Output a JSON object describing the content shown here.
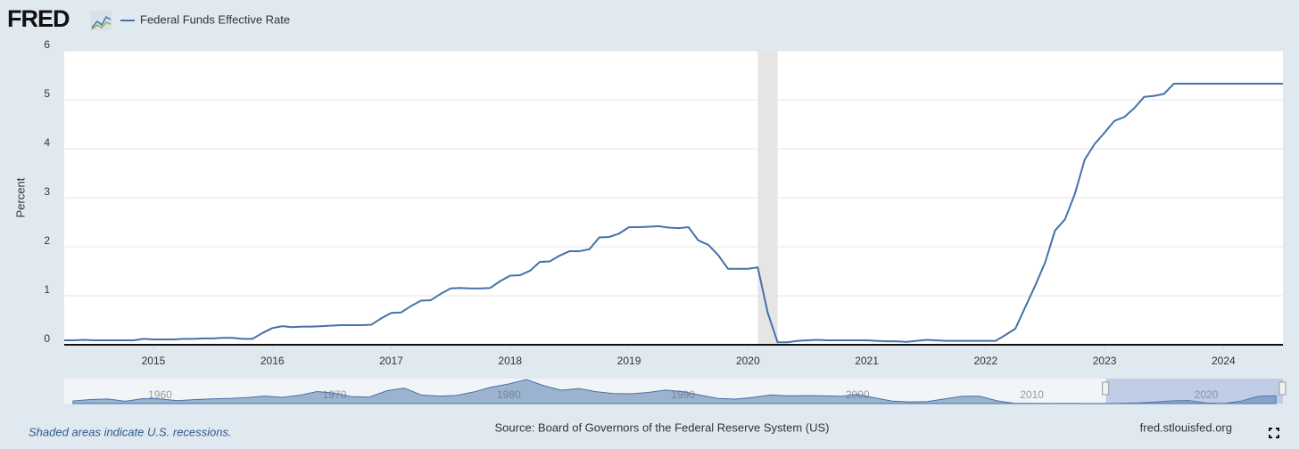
{
  "logo": "FRED",
  "chart_data": [
    {
      "type": "line",
      "ylabel": "Percent",
      "x": [
        2014.25,
        2014.333,
        2014.417,
        2014.5,
        2014.583,
        2014.667,
        2014.75,
        2014.833,
        2014.917,
        2015.0,
        2015.083,
        2015.167,
        2015.25,
        2015.333,
        2015.417,
        2015.5,
        2015.583,
        2015.667,
        2015.75,
        2015.833,
        2015.917,
        2016.0,
        2016.083,
        2016.167,
        2016.25,
        2016.333,
        2016.417,
        2016.5,
        2016.583,
        2016.667,
        2016.75,
        2016.833,
        2016.917,
        2017.0,
        2017.083,
        2017.167,
        2017.25,
        2017.333,
        2017.417,
        2017.5,
        2017.583,
        2017.667,
        2017.75,
        2017.833,
        2017.917,
        2018.0,
        2018.083,
        2018.167,
        2018.25,
        2018.333,
        2018.417,
        2018.5,
        2018.583,
        2018.667,
        2018.75,
        2018.833,
        2018.917,
        2019.0,
        2019.083,
        2019.167,
        2019.25,
        2019.333,
        2019.417,
        2019.5,
        2019.583,
        2019.667,
        2019.75,
        2019.833,
        2019.917,
        2020.0,
        2020.083,
        2020.167,
        2020.25,
        2020.333,
        2020.417,
        2020.5,
        2020.583,
        2020.667,
        2020.75,
        2020.833,
        2020.917,
        2021.0,
        2021.083,
        2021.167,
        2021.25,
        2021.333,
        2021.417,
        2021.5,
        2021.583,
        2021.667,
        2021.75,
        2021.833,
        2021.917,
        2022.0,
        2022.083,
        2022.167,
        2022.25,
        2022.333,
        2022.417,
        2022.5,
        2022.583,
        2022.667,
        2022.75,
        2022.833,
        2022.917,
        2023.0,
        2023.083,
        2023.167,
        2023.25,
        2023.333,
        2023.417,
        2023.5,
        2023.583,
        2023.667,
        2023.75,
        2023.833,
        2023.917,
        2024.0,
        2024.083,
        2024.167,
        2024.25,
        2024.333,
        2024.417,
        2024.5
      ],
      "series": [
        {
          "name": "Federal Funds Effective Rate",
          "color": "#4572a7",
          "values": [
            0.09,
            0.09,
            0.1,
            0.09,
            0.09,
            0.09,
            0.09,
            0.09,
            0.12,
            0.11,
            0.11,
            0.11,
            0.12,
            0.12,
            0.13,
            0.13,
            0.14,
            0.14,
            0.12,
            0.12,
            0.24,
            0.34,
            0.38,
            0.36,
            0.37,
            0.37,
            0.38,
            0.39,
            0.4,
            0.4,
            0.4,
            0.41,
            0.54,
            0.65,
            0.66,
            0.79,
            0.9,
            0.91,
            1.04,
            1.15,
            1.16,
            1.15,
            1.15,
            1.16,
            1.3,
            1.41,
            1.42,
            1.51,
            1.69,
            1.7,
            1.82,
            1.91,
            1.91,
            1.95,
            2.19,
            2.2,
            2.27,
            2.4,
            2.4,
            2.41,
            2.42,
            2.39,
            2.38,
            2.4,
            2.13,
            2.04,
            1.83,
            1.55,
            1.55,
            1.55,
            1.58,
            0.65,
            0.05,
            0.05,
            0.08,
            0.09,
            0.1,
            0.09,
            0.09,
            0.09,
            0.09,
            0.09,
            0.08,
            0.07,
            0.07,
            0.06,
            0.08,
            0.1,
            0.09,
            0.08,
            0.08,
            0.08,
            0.08,
            0.08,
            0.08,
            0.2,
            0.33,
            0.77,
            1.21,
            1.68,
            2.33,
            2.56,
            3.08,
            3.78,
            4.1,
            4.33,
            4.57,
            4.65,
            4.83,
            5.06,
            5.08,
            5.12,
            5.33,
            5.33,
            5.33,
            5.33,
            5.33,
            5.33,
            5.33,
            5.33,
            5.33,
            5.33,
            5.33,
            5.33
          ]
        }
      ],
      "xlim": [
        2014.25,
        2024.5
      ],
      "xticks": [
        2015,
        2016,
        2017,
        2018,
        2019,
        2020,
        2021,
        2022,
        2023,
        2024
      ],
      "ylim": [
        0,
        6
      ],
      "yticks": [
        0,
        1,
        2,
        3,
        4,
        5,
        6
      ],
      "grid": true,
      "recessions": [
        {
          "start": 2020.083,
          "end": 2020.25
        }
      ],
      "note": "Shaded areas indicate U.S. recessions.",
      "source": "Source: Board of Governors of the Federal Reserve System (US)",
      "site": "fred.stlouisfed.org"
    },
    {
      "type": "area",
      "x": [
        1955,
        1956,
        1957,
        1958,
        1959,
        1960,
        1961,
        1962,
        1963,
        1964,
        1965,
        1966,
        1967,
        1968,
        1969,
        1970,
        1971,
        1972,
        1973,
        1974,
        1975,
        1976,
        1977,
        1978,
        1979,
        1980,
        1981,
        1982,
        1983,
        1984,
        1985,
        1986,
        1987,
        1988,
        1989,
        1990,
        1991,
        1992,
        1993,
        1994,
        1995,
        1996,
        1997,
        1998,
        1999,
        2000,
        2001,
        2002,
        2003,
        2004,
        2005,
        2006,
        2007,
        2008,
        2009,
        2010,
        2011,
        2012,
        2013,
        2014,
        2015,
        2016,
        2017,
        2018,
        2019,
        2020,
        2021,
        2022,
        2023,
        2024
      ],
      "series": [
        {
          "color": "#4572a7",
          "values": [
            1.79,
            2.73,
            3.11,
            1.57,
            3.31,
            3.21,
            1.95,
            2.71,
            3.18,
            3.5,
            4.07,
            5.11,
            4.22,
            5.66,
            8.21,
            7.17,
            4.67,
            4.44,
            8.74,
            10.51,
            5.82,
            5.05,
            5.54,
            7.94,
            11.2,
            13.35,
            16.39,
            12.24,
            9.09,
            10.23,
            8.1,
            6.8,
            6.66,
            7.57,
            9.21,
            8.1,
            5.69,
            3.52,
            3.02,
            4.21,
            5.83,
            5.3,
            5.46,
            5.35,
            4.97,
            6.24,
            3.88,
            1.67,
            1.13,
            1.35,
            3.22,
            4.97,
            5.02,
            1.92,
            0.16,
            0.18,
            0.1,
            0.14,
            0.11,
            0.09,
            0.13,
            0.4,
            1.0,
            1.83,
            2.16,
            0.38,
            0.08,
            1.68,
            5.02,
            5.33
          ]
        }
      ],
      "xlim": [
        1954.5,
        2024.4
      ],
      "xticks": [
        1960,
        1970,
        1980,
        1990,
        2000,
        2010,
        2020
      ],
      "ylim": [
        0,
        17
      ]
    }
  ]
}
